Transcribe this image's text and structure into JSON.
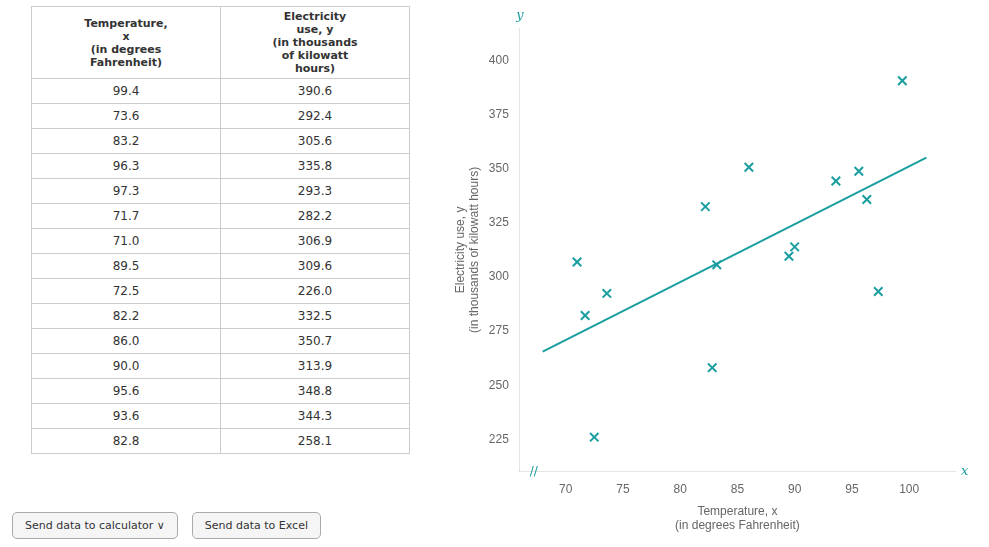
{
  "chart_data": {
    "type": "scatter",
    "x_label": "Temperature, x\n(in degrees Fahrenheit)",
    "y_label": "Electricity use, y\n(in thousands of kilowatt hours)",
    "series": [
      {
        "type": "scatter",
        "color": "#1a9ea0",
        "marker": "x",
        "x": [
          99.4,
          73.6,
          83.2,
          96.3,
          97.3,
          71.7,
          71.0,
          89.5,
          72.5,
          82.2,
          86.0,
          90.0,
          95.6,
          93.6,
          82.8
        ],
        "values": [
          390.6,
          292.4,
          305.6,
          335.8,
          293.3,
          282.2,
          306.9,
          309.6,
          226.0,
          332.5,
          350.7,
          313.9,
          348.8,
          344.3,
          258.1
        ]
      },
      {
        "type": "line",
        "color": "#1a9ea0",
        "line_style": "solid",
        "x": [
          68.0,
          101.5
        ],
        "values": [
          265.56,
          355.08
        ]
      }
    ],
    "xlim": [
      66,
      104
    ],
    "ylim": [
      210,
      415
    ],
    "xticks": [
      70,
      75,
      80,
      85,
      90,
      95,
      100
    ],
    "yticks": [
      225,
      250,
      275,
      300,
      325,
      350,
      375,
      400
    ],
    "grid": false,
    "annotations": [
      "x",
      "y",
      "//"
    ],
    "table": {
      "columns": [
        "Temperature,\nx\n(in degrees\nFahrenheit)",
        "Electricity\nuse, y\n(in thousands\nof kilowatt\nhours)"
      ],
      "rows": [
        [
          "99.4",
          "390.6"
        ],
        [
          "73.6",
          "292.4"
        ],
        [
          "83.2",
          "305.6"
        ],
        [
          "96.3",
          "335.8"
        ],
        [
          "97.3",
          "293.3"
        ],
        [
          "71.7",
          "282.2"
        ],
        [
          "71.0",
          "306.9"
        ],
        [
          "89.5",
          "309.6"
        ],
        [
          "72.5",
          "226.0"
        ],
        [
          "82.2",
          "332.5"
        ],
        [
          "86.0",
          "350.7"
        ],
        [
          "90.0",
          "313.9"
        ],
        [
          "95.6",
          "348.8"
        ],
        [
          "93.6",
          "344.3"
        ],
        [
          "82.8",
          "258.1"
        ]
      ]
    },
    "buttons": [
      "Send data to calculator ∨",
      "Send data to Excel"
    ]
  }
}
